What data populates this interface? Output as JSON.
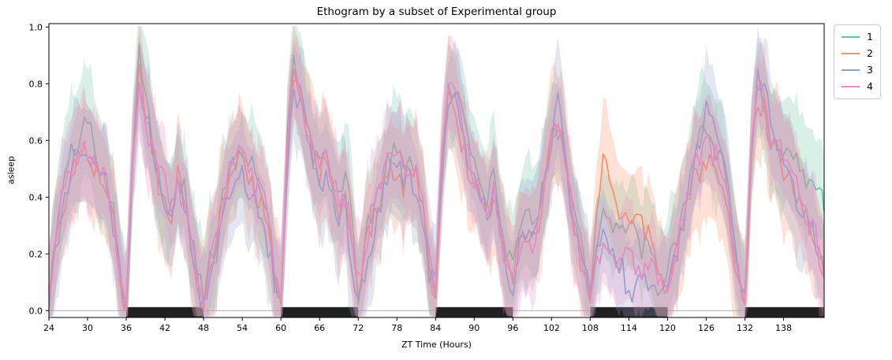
{
  "chart_data": {
    "type": "line",
    "title": "Ethogram by a subset of Experimental group",
    "xlabel": "ZT Time (Hours)",
    "ylabel": "asleep",
    "xlim": [
      24,
      144.3
    ],
    "ylim": [
      -0.024,
      1.012
    ],
    "x_ticks": [
      24,
      30,
      36,
      42,
      48,
      54,
      60,
      66,
      72,
      78,
      84,
      90,
      96,
      102,
      108,
      114,
      120,
      126,
      132,
      138
    ],
    "y_ticks": [
      0.0,
      0.2,
      0.4,
      0.6,
      0.8,
      1.0
    ],
    "grid": false,
    "legend_position": "upper-right-outside",
    "baseline_value": 0,
    "baseline_color": "#b0b0b0",
    "dark_phase_color": "#161616",
    "dark_phases": [
      [
        36,
        48
      ],
      [
        60,
        72
      ],
      [
        84,
        96
      ],
      [
        108,
        120
      ],
      [
        132,
        144.3
      ]
    ],
    "band_alpha": 0.25,
    "anchor_hours_start": 24,
    "anchor_step": 1,
    "series": [
      {
        "name": "1",
        "color": "#66c2a5",
        "band_scale": 1.15,
        "values": [
          0.06,
          0.24,
          0.4,
          0.5,
          0.58,
          0.62,
          0.64,
          0.58,
          0.55,
          0.48,
          0.34,
          0.16,
          0.02,
          0.58,
          0.87,
          0.74,
          0.62,
          0.52,
          0.42,
          0.37,
          0.47,
          0.42,
          0.32,
          0.16,
          0.07,
          0.17,
          0.27,
          0.37,
          0.47,
          0.54,
          0.57,
          0.52,
          0.47,
          0.42,
          0.32,
          0.16,
          0.04,
          0.62,
          0.88,
          0.78,
          0.66,
          0.56,
          0.52,
          0.57,
          0.47,
          0.42,
          0.47,
          0.32,
          0.08,
          0.22,
          0.32,
          0.42,
          0.52,
          0.57,
          0.54,
          0.52,
          0.57,
          0.5,
          0.37,
          0.17,
          0.07,
          0.57,
          0.78,
          0.76,
          0.66,
          0.56,
          0.52,
          0.44,
          0.38,
          0.46,
          0.32,
          0.17,
          0.14,
          0.27,
          0.32,
          0.3,
          0.37,
          0.5,
          0.62,
          0.64,
          0.56,
          0.42,
          0.3,
          0.17,
          0.05,
          0.25,
          0.32,
          0.3,
          0.27,
          0.24,
          0.26,
          0.22,
          0.2,
          0.18,
          0.12,
          0.08,
          0.1,
          0.22,
          0.32,
          0.42,
          0.52,
          0.57,
          0.6,
          0.56,
          0.52,
          0.44,
          0.32,
          0.16,
          0.04,
          0.62,
          0.84,
          0.76,
          0.64,
          0.6,
          0.58,
          0.6,
          0.55,
          0.5,
          0.48,
          0.45,
          0.42,
          0.12
        ]
      },
      {
        "name": "2",
        "color": "#fc8d62",
        "band_scale": 1.2,
        "values": [
          0.05,
          0.22,
          0.36,
          0.46,
          0.54,
          0.56,
          0.58,
          0.54,
          0.5,
          0.44,
          0.3,
          0.14,
          0.02,
          0.55,
          0.83,
          0.7,
          0.58,
          0.48,
          0.38,
          0.33,
          0.43,
          0.38,
          0.28,
          0.14,
          0.05,
          0.14,
          0.24,
          0.34,
          0.44,
          0.5,
          0.53,
          0.48,
          0.44,
          0.38,
          0.28,
          0.14,
          0.03,
          0.58,
          0.85,
          0.75,
          0.62,
          0.53,
          0.48,
          0.52,
          0.44,
          0.38,
          0.43,
          0.26,
          0.06,
          0.19,
          0.29,
          0.39,
          0.48,
          0.53,
          0.5,
          0.48,
          0.53,
          0.46,
          0.33,
          0.14,
          0.05,
          0.53,
          0.77,
          0.75,
          0.62,
          0.53,
          0.48,
          0.4,
          0.33,
          0.4,
          0.28,
          0.14,
          0.11,
          0.24,
          0.28,
          0.26,
          0.33,
          0.46,
          0.58,
          0.62,
          0.53,
          0.38,
          0.26,
          0.14,
          0.04,
          0.35,
          0.52,
          0.46,
          0.4,
          0.35,
          0.31,
          0.3,
          0.27,
          0.25,
          0.2,
          0.12,
          0.1,
          0.2,
          0.3,
          0.38,
          0.47,
          0.52,
          0.55,
          0.52,
          0.48,
          0.4,
          0.28,
          0.14,
          0.03,
          0.58,
          0.78,
          0.72,
          0.6,
          0.55,
          0.5,
          0.46,
          0.42,
          0.38,
          0.33,
          0.28,
          0.18,
          0.06
        ]
      },
      {
        "name": "3",
        "color": "#8da0cb",
        "band_scale": 1.1,
        "values": [
          0.04,
          0.2,
          0.34,
          0.44,
          0.5,
          0.53,
          0.55,
          0.51,
          0.47,
          0.41,
          0.28,
          0.13,
          0.02,
          0.52,
          0.8,
          0.68,
          0.56,
          0.46,
          0.36,
          0.31,
          0.41,
          0.36,
          0.26,
          0.13,
          0.05,
          0.13,
          0.23,
          0.33,
          0.42,
          0.48,
          0.51,
          0.46,
          0.42,
          0.36,
          0.26,
          0.13,
          0.03,
          0.55,
          0.82,
          0.72,
          0.6,
          0.5,
          0.46,
          0.5,
          0.42,
          0.36,
          0.4,
          0.14,
          0.05,
          0.17,
          0.27,
          0.37,
          0.46,
          0.51,
          0.48,
          0.46,
          0.51,
          0.44,
          0.31,
          0.13,
          0.05,
          0.5,
          0.75,
          0.73,
          0.6,
          0.51,
          0.46,
          0.38,
          0.31,
          0.38,
          0.26,
          0.13,
          0.1,
          0.22,
          0.26,
          0.24,
          0.31,
          0.44,
          0.62,
          0.74,
          0.58,
          0.4,
          0.25,
          0.13,
          0.04,
          0.25,
          0.3,
          0.28,
          0.22,
          0.18,
          0.08,
          0.12,
          0.1,
          0.1,
          0.08,
          0.05,
          0.08,
          0.18,
          0.28,
          0.38,
          0.5,
          0.6,
          0.68,
          0.62,
          0.54,
          0.44,
          0.3,
          0.14,
          0.03,
          0.6,
          0.86,
          0.78,
          0.64,
          0.58,
          0.52,
          0.47,
          0.42,
          0.36,
          0.3,
          0.22,
          0.14,
          0.05
        ]
      },
      {
        "name": "4",
        "color": "#e78ac3",
        "band_scale": 1.05,
        "values": [
          0.05,
          0.23,
          0.38,
          0.48,
          0.56,
          0.58,
          0.6,
          0.55,
          0.52,
          0.46,
          0.32,
          0.15,
          0.02,
          0.56,
          0.84,
          0.72,
          0.6,
          0.5,
          0.4,
          0.35,
          0.45,
          0.4,
          0.3,
          0.15,
          0.06,
          0.15,
          0.25,
          0.35,
          0.45,
          0.52,
          0.55,
          0.5,
          0.45,
          0.4,
          0.3,
          0.15,
          0.03,
          0.6,
          0.86,
          0.76,
          0.63,
          0.54,
          0.49,
          0.54,
          0.45,
          0.39,
          0.44,
          0.28,
          0.06,
          0.2,
          0.3,
          0.4,
          0.49,
          0.54,
          0.51,
          0.49,
          0.54,
          0.47,
          0.34,
          0.15,
          0.06,
          0.56,
          0.82,
          0.8,
          0.66,
          0.55,
          0.5,
          0.42,
          0.34,
          0.42,
          0.29,
          0.15,
          0.12,
          0.25,
          0.3,
          0.27,
          0.34,
          0.47,
          0.59,
          0.63,
          0.54,
          0.39,
          0.27,
          0.14,
          0.04,
          0.15,
          0.2,
          0.18,
          0.15,
          0.15,
          0.18,
          0.15,
          0.12,
          0.12,
          0.1,
          0.08,
          0.1,
          0.2,
          0.3,
          0.4,
          0.48,
          0.53,
          0.56,
          0.53,
          0.49,
          0.41,
          0.29,
          0.15,
          0.03,
          0.6,
          0.82,
          0.74,
          0.62,
          0.57,
          0.52,
          0.48,
          0.43,
          0.38,
          0.32,
          0.28,
          0.2,
          0.08
        ]
      }
    ]
  }
}
